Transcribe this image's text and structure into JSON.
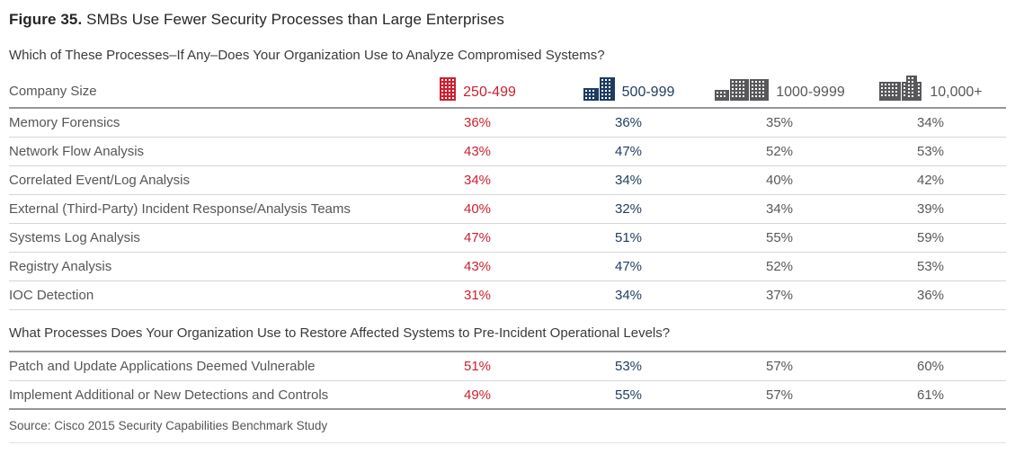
{
  "figure": {
    "label": "Figure 35.",
    "title": " SMBs Use Fewer Security Processes than Large Enterprises"
  },
  "company_size_label": "Company Size",
  "colors": {
    "red": "#cd2030",
    "navy": "#1e3c5f",
    "gray": "#58585b",
    "label_gray": "#56565a",
    "rule_strong": "#95959a",
    "rule_light": "#d6d6d8"
  },
  "columns": [
    {
      "label": "250-499",
      "icon": "building-single-icon",
      "color": "#cd2030"
    },
    {
      "label": "500-999",
      "icon": "buildings-two-icon",
      "color": "#1e3c5f"
    },
    {
      "label": "1000-9999",
      "icon": "buildings-three-icon",
      "color": "#58585b"
    },
    {
      "label": "10,000+",
      "icon": "buildings-cluster-icon",
      "color": "#58585b"
    }
  ],
  "sections": [
    {
      "question": "Which of These Processes–If Any–Does Your Organization Use to Analyze Compromised Systems?",
      "rows": [
        {
          "label": "Memory Forensics",
          "values": [
            "36%",
            "36%",
            "35%",
            "34%"
          ]
        },
        {
          "label": "Network Flow Analysis",
          "values": [
            "43%",
            "47%",
            "52%",
            "53%"
          ]
        },
        {
          "label": "Correlated Event/Log Analysis",
          "values": [
            "34%",
            "34%",
            "40%",
            "42%"
          ]
        },
        {
          "label": "External (Third-Party) Incident Response/Analysis Teams",
          "values": [
            "40%",
            "32%",
            "34%",
            "39%"
          ]
        },
        {
          "label": "Systems Log Analysis",
          "values": [
            "47%",
            "51%",
            "55%",
            "59%"
          ]
        },
        {
          "label": "Registry Analysis",
          "values": [
            "43%",
            "47%",
            "52%",
            "53%"
          ]
        },
        {
          "label": "IOC Detection",
          "values": [
            "31%",
            "34%",
            "37%",
            "36%"
          ]
        }
      ]
    },
    {
      "question": "What Processes Does Your Organization Use to Restore Affected Systems to Pre-Incident Operational Levels?",
      "rows": [
        {
          "label": "Patch and Update Applications Deemed Vulnerable",
          "values": [
            "51%",
            "53%",
            "57%",
            "60%"
          ]
        },
        {
          "label": "Implement Additional or New Detections and Controls",
          "values": [
            "49%",
            "55%",
            "57%",
            "61%"
          ]
        }
      ]
    }
  ],
  "source": "Source: Cisco 2015 Security Capabilities Benchmark Study",
  "chart_data": {
    "type": "table",
    "title": "Figure 35. SMBs Use Fewer Security Processes than Large Enterprises",
    "column_groups": [
      "250-499",
      "500-999",
      "1000-9999",
      "10,000+"
    ],
    "sections": [
      {
        "question": "Which of These Processes–If Any–Does Your Organization Use to Analyze Compromised Systems?",
        "categories": [
          "Memory Forensics",
          "Network Flow Analysis",
          "Correlated Event/Log Analysis",
          "External (Third-Party) Incident Response/Analysis Teams",
          "Systems Log Analysis",
          "Registry Analysis",
          "IOC Detection"
        ],
        "series": [
          {
            "name": "250-499",
            "values": [
              36,
              43,
              34,
              40,
              47,
              43,
              31
            ]
          },
          {
            "name": "500-999",
            "values": [
              36,
              47,
              34,
              32,
              51,
              47,
              34
            ]
          },
          {
            "name": "1000-9999",
            "values": [
              35,
              52,
              40,
              34,
              55,
              52,
              37
            ]
          },
          {
            "name": "10,000+",
            "values": [
              34,
              53,
              42,
              39,
              59,
              53,
              36
            ]
          }
        ],
        "unit": "%"
      },
      {
        "question": "What Processes Does Your Organization Use to Restore Affected Systems to Pre-Incident Operational Levels?",
        "categories": [
          "Patch and Update Applications Deemed Vulnerable",
          "Implement Additional or New Detections and Controls"
        ],
        "series": [
          {
            "name": "250-499",
            "values": [
              51,
              49
            ]
          },
          {
            "name": "500-999",
            "values": [
              53,
              55
            ]
          },
          {
            "name": "1000-9999",
            "values": [
              57,
              57
            ]
          },
          {
            "name": "10,000+",
            "values": [
              60,
              61
            ]
          }
        ],
        "unit": "%"
      }
    ],
    "source": "Source: Cisco 2015 Security Capabilities Benchmark Study"
  }
}
